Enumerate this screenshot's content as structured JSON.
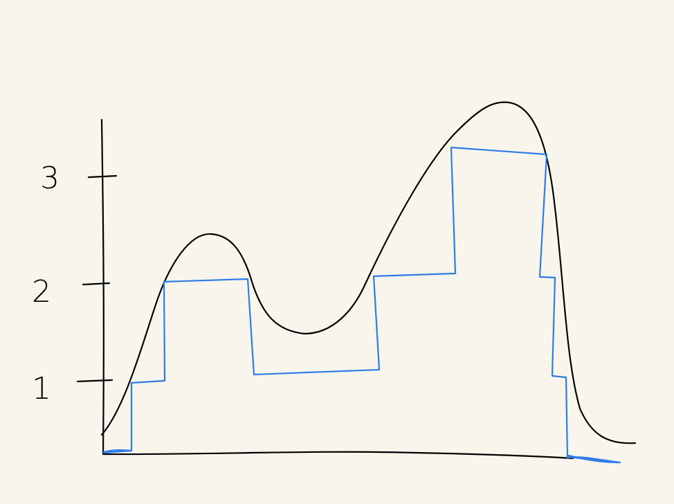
{
  "colors": {
    "background": "#f8f6ec",
    "curve": "#000000",
    "steps": "#2f7be8"
  },
  "y_axis": {
    "tick_labels": [
      "1",
      "2",
      "3"
    ]
  },
  "chart_data": {
    "type": "line",
    "y_ticks": [
      1,
      2,
      3
    ],
    "curve_shape": "bimodal, low peak then higher peak",
    "step_values_by_segment": [
      0,
      1,
      2,
      1,
      2,
      3,
      2,
      1,
      0
    ]
  }
}
